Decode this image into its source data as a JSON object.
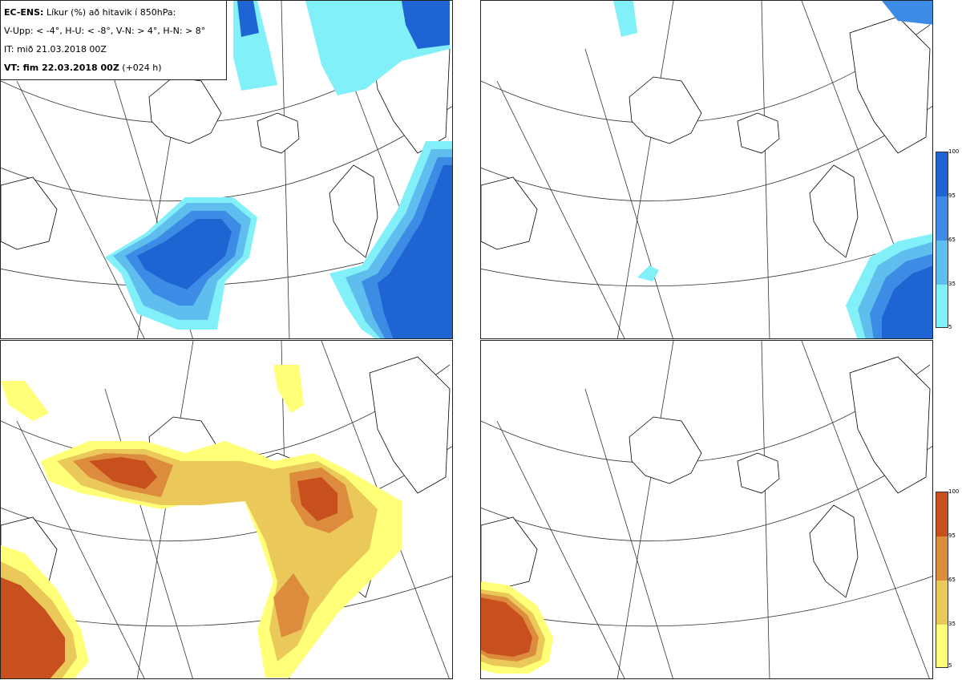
{
  "info": {
    "line1_bold": "EC-ENS:",
    "line1_rest": " Líkur (%) að hitavik í 850hPa:",
    "line2": "V-Upp: < -4°, H-U: < -8°, V-N: > 4°, H-N: > 8°",
    "line3": "IT: mið 21.03.2018 00Z",
    "line4_bold": "VT: fim 22.03.2018 00Z",
    "line4_rest": " (+024 h)"
  },
  "panels": [
    {
      "id": "V-Upp",
      "scheme": "blue"
    },
    {
      "id": "H-U",
      "scheme": "blue"
    },
    {
      "id": "V-N",
      "scheme": "orange"
    },
    {
      "id": "H-N",
      "scheme": "orange"
    }
  ],
  "colorbar_top": {
    "levels": [
      "100",
      "95",
      "65",
      "35",
      "5"
    ],
    "colors": [
      "#1e64d2",
      "#3c8ce6",
      "#5fbeee",
      "#82f0f8"
    ]
  },
  "colorbar_bottom": {
    "levels": [
      "100",
      "95",
      "65",
      "35",
      "5"
    ],
    "colors": [
      "#c8501e",
      "#dc8c3c",
      "#ebc85a",
      "#ffff78"
    ]
  }
}
